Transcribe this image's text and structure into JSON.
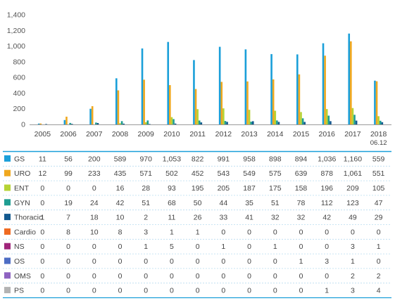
{
  "chart_data": {
    "type": "bar",
    "categories": [
      "2005",
      "2006",
      "2007",
      "2008",
      "2009",
      "2010",
      "2011",
      "2012",
      "2013",
      "2014",
      "2015",
      "2016",
      "2017",
      "2018"
    ],
    "category_sublabels": [
      "",
      "",
      "",
      "",
      "",
      "",
      "",
      "",
      "",
      "",
      "",
      "",
      "",
      "06.12"
    ],
    "ylim": [
      0,
      1400
    ],
    "yticks": [
      "0",
      "200",
      "400",
      "600",
      "800",
      "1,000",
      "1,200",
      "1,400"
    ],
    "grid": false,
    "series": [
      {
        "name": "GS",
        "color": "#1a9fd9",
        "plotted": true,
        "values": [
          11,
          56,
          200,
          589,
          970,
          1053,
          822,
          991,
          958,
          898,
          894,
          1036,
          1160,
          559
        ],
        "labels": [
          "11",
          "56",
          "200",
          "589",
          "970",
          "1,053",
          "822",
          "991",
          "958",
          "898",
          "894",
          "1,036",
          "1,160",
          "559"
        ]
      },
      {
        "name": "URO",
        "color": "#f0a81e",
        "plotted": true,
        "values": [
          12,
          99,
          233,
          435,
          571,
          502,
          452,
          543,
          549,
          575,
          639,
          878,
          1061,
          551
        ],
        "labels": [
          "12",
          "99",
          "233",
          "435",
          "571",
          "502",
          "452",
          "543",
          "549",
          "575",
          "639",
          "878",
          "1,061",
          "551"
        ]
      },
      {
        "name": "ENT",
        "color": "#b5d334",
        "plotted": true,
        "values": [
          0,
          0,
          0,
          16,
          28,
          93,
          195,
          205,
          187,
          175,
          158,
          196,
          209,
          105
        ],
        "labels": [
          "0",
          "0",
          "0",
          "16",
          "28",
          "93",
          "195",
          "205",
          "187",
          "175",
          "158",
          "196",
          "209",
          "105"
        ]
      },
      {
        "name": "GYN",
        "color": "#1f9e92",
        "plotted": true,
        "values": [
          0,
          19,
          24,
          42,
          51,
          68,
          50,
          44,
          35,
          51,
          78,
          112,
          123,
          47
        ],
        "labels": [
          "0",
          "19",
          "24",
          "42",
          "51",
          "68",
          "50",
          "44",
          "35",
          "51",
          "78",
          "112",
          "123",
          "47"
        ]
      },
      {
        "name": "Thoracic",
        "color": "#13598f",
        "plotted": true,
        "values": [
          1,
          7,
          18,
          10,
          2,
          11,
          26,
          33,
          41,
          32,
          32,
          42,
          49,
          29
        ],
        "labels": [
          "1",
          "7",
          "18",
          "10",
          "2",
          "11",
          "26",
          "33",
          "41",
          "32",
          "32",
          "42",
          "49",
          "29"
        ]
      },
      {
        "name": "Cardio",
        "color": "#ef6a21",
        "plotted": false,
        "values": [
          0,
          8,
          10,
          8,
          3,
          1,
          1,
          0,
          0,
          0,
          0,
          0,
          0,
          0
        ],
        "labels": [
          "0",
          "8",
          "10",
          "8",
          "3",
          "1",
          "1",
          "0",
          "0",
          "0",
          "0",
          "0",
          "0",
          "0"
        ]
      },
      {
        "name": "NS",
        "color": "#a0257a",
        "plotted": false,
        "values": [
          0,
          0,
          0,
          0,
          1,
          5,
          0,
          1,
          0,
          1,
          0,
          0,
          3,
          1
        ],
        "labels": [
          "0",
          "0",
          "0",
          "0",
          "1",
          "5",
          "0",
          "1",
          "0",
          "1",
          "0",
          "0",
          "3",
          "1"
        ]
      },
      {
        "name": "OS",
        "color": "#4d6dc4",
        "plotted": false,
        "values": [
          0,
          0,
          0,
          0,
          0,
          0,
          0,
          0,
          0,
          0,
          1,
          3,
          1,
          0
        ],
        "labels": [
          "0",
          "0",
          "0",
          "0",
          "0",
          "0",
          "0",
          "0",
          "0",
          "0",
          "1",
          "3",
          "1",
          "0"
        ]
      },
      {
        "name": "OMS",
        "color": "#8e63c1",
        "plotted": false,
        "values": [
          0,
          0,
          0,
          0,
          0,
          0,
          0,
          0,
          0,
          0,
          0,
          0,
          2,
          2
        ],
        "labels": [
          "0",
          "0",
          "0",
          "0",
          "0",
          "0",
          "0",
          "0",
          "0",
          "0",
          "0",
          "0",
          "2",
          "2"
        ]
      },
      {
        "name": "PS",
        "color": "#b3b3b3",
        "plotted": false,
        "values": [
          0,
          0,
          0,
          0,
          0,
          0,
          0,
          0,
          0,
          0,
          0,
          1,
          3,
          4
        ],
        "labels": [
          "0",
          "0",
          "0",
          "0",
          "0",
          "0",
          "0",
          "0",
          "0",
          "0",
          "0",
          "1",
          "3",
          "4"
        ]
      }
    ]
  }
}
